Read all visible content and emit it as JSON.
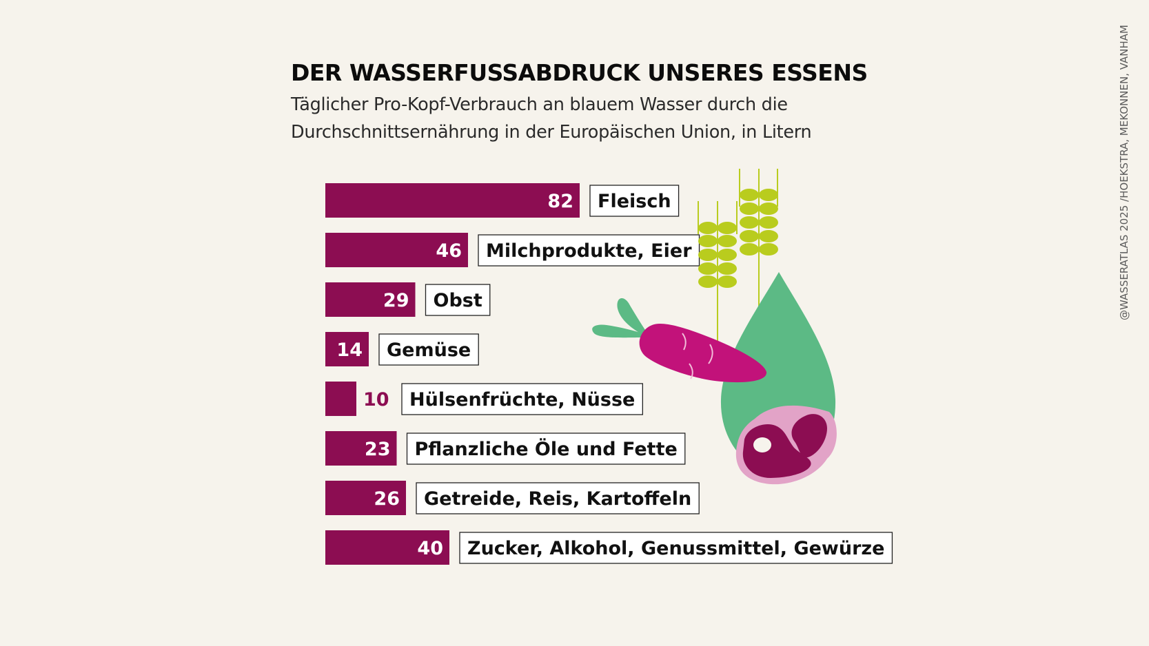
{
  "title": "DER WASSERFUSSABDRUCK UNSERES ESSENS",
  "subtitle": "Täglicher Pro-Kopf-Verbrauch an blauem Wasser durch die Durchschnittsernährung in der Europäischen Union, in Litern",
  "credit": "@WASSERATLAS 2025 /HOEKSTRA, MEKONNEN, VANHAM",
  "colors": {
    "bar": "#8c0d52",
    "outside_label": "#8c0d52",
    "inside_label": "#ffffff",
    "label_box_border": "#222222",
    "background": "#f6f3ec",
    "drop": "#5cba85",
    "wheat": "#b9cc1e",
    "carrot": "#c2127a",
    "leaf": "#5cba85",
    "steak_outer": "#e2a3c7",
    "steak_inner": "#8c0d52"
  },
  "icons": [
    "wheat-icon",
    "water-drop-icon",
    "carrot-icon",
    "steak-icon"
  ],
  "chart_data": {
    "type": "bar",
    "orientation": "horizontal",
    "categories": [
      "Fleisch",
      "Milchprodukte, Eier",
      "Obst",
      "Gemüse",
      "Hülsenfrüchte, Nüsse",
      "Pflanzliche Öle und Fette",
      "Getreide, Reis, Kartoffeln",
      "Zucker, Alkohol, Genussmittel, Gewürze"
    ],
    "values": [
      82,
      46,
      29,
      14,
      10,
      23,
      26,
      40
    ],
    "xlim": [
      0,
      82
    ],
    "grid": false,
    "legend": "none"
  }
}
